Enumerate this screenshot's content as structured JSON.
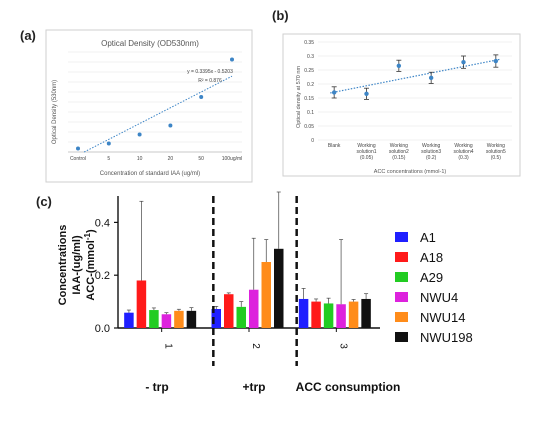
{
  "panel_labels": {
    "a": "(a)",
    "b": "(b)",
    "c": "(c)"
  },
  "chart_data": [
    {
      "type": "scatter",
      "title": "Optical Density (OD530nm)",
      "xlabel": "Concentration of standard IAA (ug/ml)",
      "ylabel": "Optical Density  (530nm)",
      "categories": [
        "Control",
        "5",
        "10",
        "20",
        "50",
        "100ug/ml"
      ],
      "y_ticks": [
        "0",
        "0.2",
        "0.4",
        "0.6",
        "0.8",
        "1",
        "1.2",
        "1.4",
        "1.6",
        "1.8",
        "2"
      ],
      "ylim": [
        0,
        2
      ],
      "values": [
        0.07,
        0.17,
        0.35,
        0.53,
        1.1,
        1.85
      ],
      "trendline": {
        "equation": "y = 0.3395x - 0.5203",
        "r2": "R² = 0.876",
        "slope": 0.3395,
        "intercept": -0.5203
      },
      "series_color": "#3d85c6",
      "grid": true
    },
    {
      "type": "scatter",
      "xlabel": "ACC concentrations (mmol-1)",
      "ylabel": "Optical density at 570 nm",
      "categories": [
        "Blank",
        "Working solution1 (0.05)",
        "Working solution2 (0.15)",
        "Working solution3 (0.2)",
        "Working solution4 (0.3)",
        "Working solution5 (0.5)"
      ],
      "x_tick_lines": [
        [
          "Blank"
        ],
        [
          "Working",
          "solution1",
          "(0.05)"
        ],
        [
          "Working",
          "solution2",
          "(0.15)"
        ],
        [
          "Working",
          "solution3",
          "(0.2)"
        ],
        [
          "Working",
          "solution4",
          "(0.3)"
        ],
        [
          "Working",
          "solution5",
          "(0.5)"
        ]
      ],
      "y_ticks": [
        "0",
        "0.05",
        "0.1",
        "0.15",
        "0.2",
        "0.25",
        "0.3",
        "0.35"
      ],
      "ylim": [
        0,
        0.35
      ],
      "values": [
        0.17,
        0.165,
        0.265,
        0.222,
        0.278,
        0.282
      ],
      "errors": [
        0.02,
        0.02,
        0.02,
        0.02,
        0.022,
        0.022
      ],
      "trendline": true,
      "series_color": "#3d85c6",
      "grid": true
    },
    {
      "type": "bar",
      "ylabel": "Concentrations IAA-(ug/ml) ACC-(mmol⁻¹)",
      "ylabel_lines": [
        "Concentrations",
        "IAA-(ug/ml)",
        "ACC-(mmol",
        "-1",
        ")"
      ],
      "categories": [
        "1",
        "2",
        "3"
      ],
      "group_labels": [
        "- trp",
        "+trp",
        "ACC consumption"
      ],
      "y_ticks": [
        "0.0",
        "0.2",
        "0.4"
      ],
      "ylim": [
        0,
        0.5
      ],
      "series": [
        {
          "name": "A1",
          "color": "#1f1fff",
          "values": [
            0.058,
            0.072,
            0.11
          ],
          "errors": [
            0.01,
            0.01,
            0.04
          ]
        },
        {
          "name": "A18",
          "color": "#ff1a1a",
          "values": [
            0.18,
            0.128,
            0.1
          ],
          "errors": [
            0.3,
            0.005,
            0.01
          ]
        },
        {
          "name": "A29",
          "color": "#22cc22",
          "values": [
            0.068,
            0.08,
            0.093
          ],
          "errors": [
            0.008,
            0.02,
            0.02
          ]
        },
        {
          "name": "NWU4",
          "color": "#dd22dd",
          "values": [
            0.052,
            0.145,
            0.09
          ],
          "errors": [
            0.006,
            0.195,
            0.245
          ]
        },
        {
          "name": "NWU14",
          "color": "#ff8c1a",
          "values": [
            0.065,
            0.25,
            0.1
          ],
          "errors": [
            0.006,
            0.085,
            0.008
          ]
        },
        {
          "name": "NWU198",
          "color": "#111111",
          "values": [
            0.065,
            0.3,
            0.11
          ],
          "errors": [
            0.012,
            0.23,
            0.02
          ]
        }
      ]
    }
  ]
}
